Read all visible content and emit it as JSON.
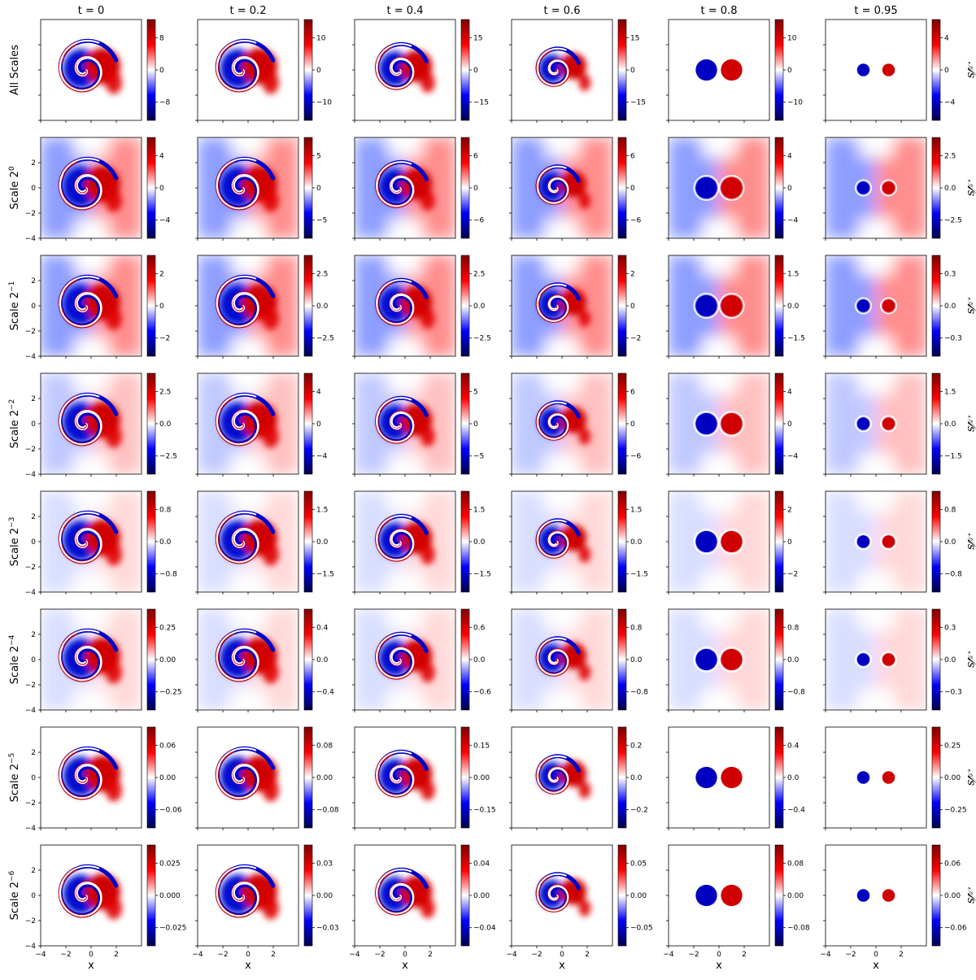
{
  "chart_data": {
    "type": "heatmap",
    "title": "",
    "xlabel": "x",
    "colormap": "seismic",
    "colorbar_label": "𝒜s",
    "xlim": [
      -4,
      4
    ],
    "ylim": [
      -4,
      4
    ],
    "x_ticks": [
      "−4",
      "−2",
      "0",
      "2"
    ],
    "y_ticks": [
      "−4",
      "−2",
      "0",
      "2"
    ],
    "columns": [
      {
        "title": "t = 0",
        "pattern": "spiral-large"
      },
      {
        "title": "t = 0.2",
        "pattern": "spiral-large"
      },
      {
        "title": "t = 0.4",
        "pattern": "spiral-medium"
      },
      {
        "title": "t = 0.6",
        "pattern": "spiral-small"
      },
      {
        "title": "t = 0.8",
        "pattern": "dipole"
      },
      {
        "title": "t = 0.95",
        "pattern": "dipole-small"
      }
    ],
    "rows": [
      {
        "label": "All Scales",
        "background": "none",
        "cbar": [
          [
            "8",
            "0",
            "−8"
          ],
          [
            "10",
            "0",
            "−10"
          ],
          [
            "15",
            "0",
            "−15"
          ],
          [
            "15",
            "0",
            "−15"
          ],
          [
            "10",
            "0",
            "−10"
          ],
          [
            "4",
            "0",
            "−4"
          ]
        ]
      },
      {
        "label": "Scale 2",
        "exp": "0",
        "background": "strong",
        "cbar": [
          [
            "4",
            "0",
            "−4"
          ],
          [
            "5",
            "0",
            "−5"
          ],
          [
            "6",
            "0",
            "−6"
          ],
          [
            "6",
            "0",
            "−6"
          ],
          [
            "4",
            "0",
            "−4"
          ],
          [
            "2.5",
            "0.0",
            "−2.5"
          ]
        ]
      },
      {
        "label": "Scale 2",
        "exp": "−1",
        "background": "strong",
        "cbar": [
          [
            "2",
            "0",
            "−2"
          ],
          [
            "2.5",
            "0.0",
            "−2.5"
          ],
          [
            "2.5",
            "0.0",
            "−2.5"
          ],
          [
            "2",
            "0",
            "−2"
          ],
          [
            "1.5",
            "0.0",
            "−1.5"
          ],
          [
            "0.3",
            "0.0",
            "−0.3"
          ]
        ]
      },
      {
        "label": "Scale 2",
        "exp": "−2",
        "background": "medium",
        "cbar": [
          [
            "2.5",
            "0.0",
            "−2.5"
          ],
          [
            "4",
            "0",
            "−4"
          ],
          [
            "5",
            "0",
            "−5"
          ],
          [
            "6",
            "0",
            "−6"
          ],
          [
            "4",
            "0",
            "−4"
          ],
          [
            "1.5",
            "0.0",
            "−1.5"
          ]
        ]
      },
      {
        "label": "Scale 2",
        "exp": "−3",
        "background": "light",
        "cbar": [
          [
            "0.8",
            "0.0",
            "−0.8"
          ],
          [
            "1.5",
            "0.0",
            "−1.5"
          ],
          [
            "1.5",
            "0.0",
            "−1.5"
          ],
          [
            "1.5",
            "0.0",
            "−1.5"
          ],
          [
            "2",
            "0",
            "−2"
          ],
          [
            "0.8",
            "0.0",
            "−0.8"
          ]
        ]
      },
      {
        "label": "Scale 2",
        "exp": "−4",
        "background": "light",
        "cbar": [
          [
            "0.25",
            "0.00",
            "−0.25"
          ],
          [
            "0.4",
            "0.0",
            "−0.4"
          ],
          [
            "0.6",
            "0.0",
            "−0.6"
          ],
          [
            "0.8",
            "0.0",
            "−0.8"
          ],
          [
            "0.8",
            "0.0",
            "−0.8"
          ],
          [
            "0.3",
            "0.0",
            "−0.3"
          ]
        ]
      },
      {
        "label": "Scale 2",
        "exp": "−5",
        "background": "none",
        "cbar": [
          [
            "0.06",
            "0.00",
            "−0.06"
          ],
          [
            "0.08",
            "0.00",
            "−0.08"
          ],
          [
            "0.15",
            "0.00",
            "−0.15"
          ],
          [
            "0.2",
            "0.0",
            "−0.2"
          ],
          [
            "0.4",
            "0.0",
            "−0.4"
          ],
          [
            "0.25",
            "0.00",
            "−0.25"
          ]
        ]
      },
      {
        "label": "Scale 2",
        "exp": "−6",
        "background": "none",
        "cbar": [
          [
            "0.025",
            "0.000",
            "−0.025"
          ],
          [
            "0.03",
            "0.00",
            "−0.03"
          ],
          [
            "0.04",
            "0.00",
            "−0.04"
          ],
          [
            "0.05",
            "0.00",
            "−0.05"
          ],
          [
            "0.08",
            "0.00",
            "−0.08"
          ],
          [
            "0.06",
            "0.00",
            "−0.06"
          ]
        ]
      }
    ]
  }
}
